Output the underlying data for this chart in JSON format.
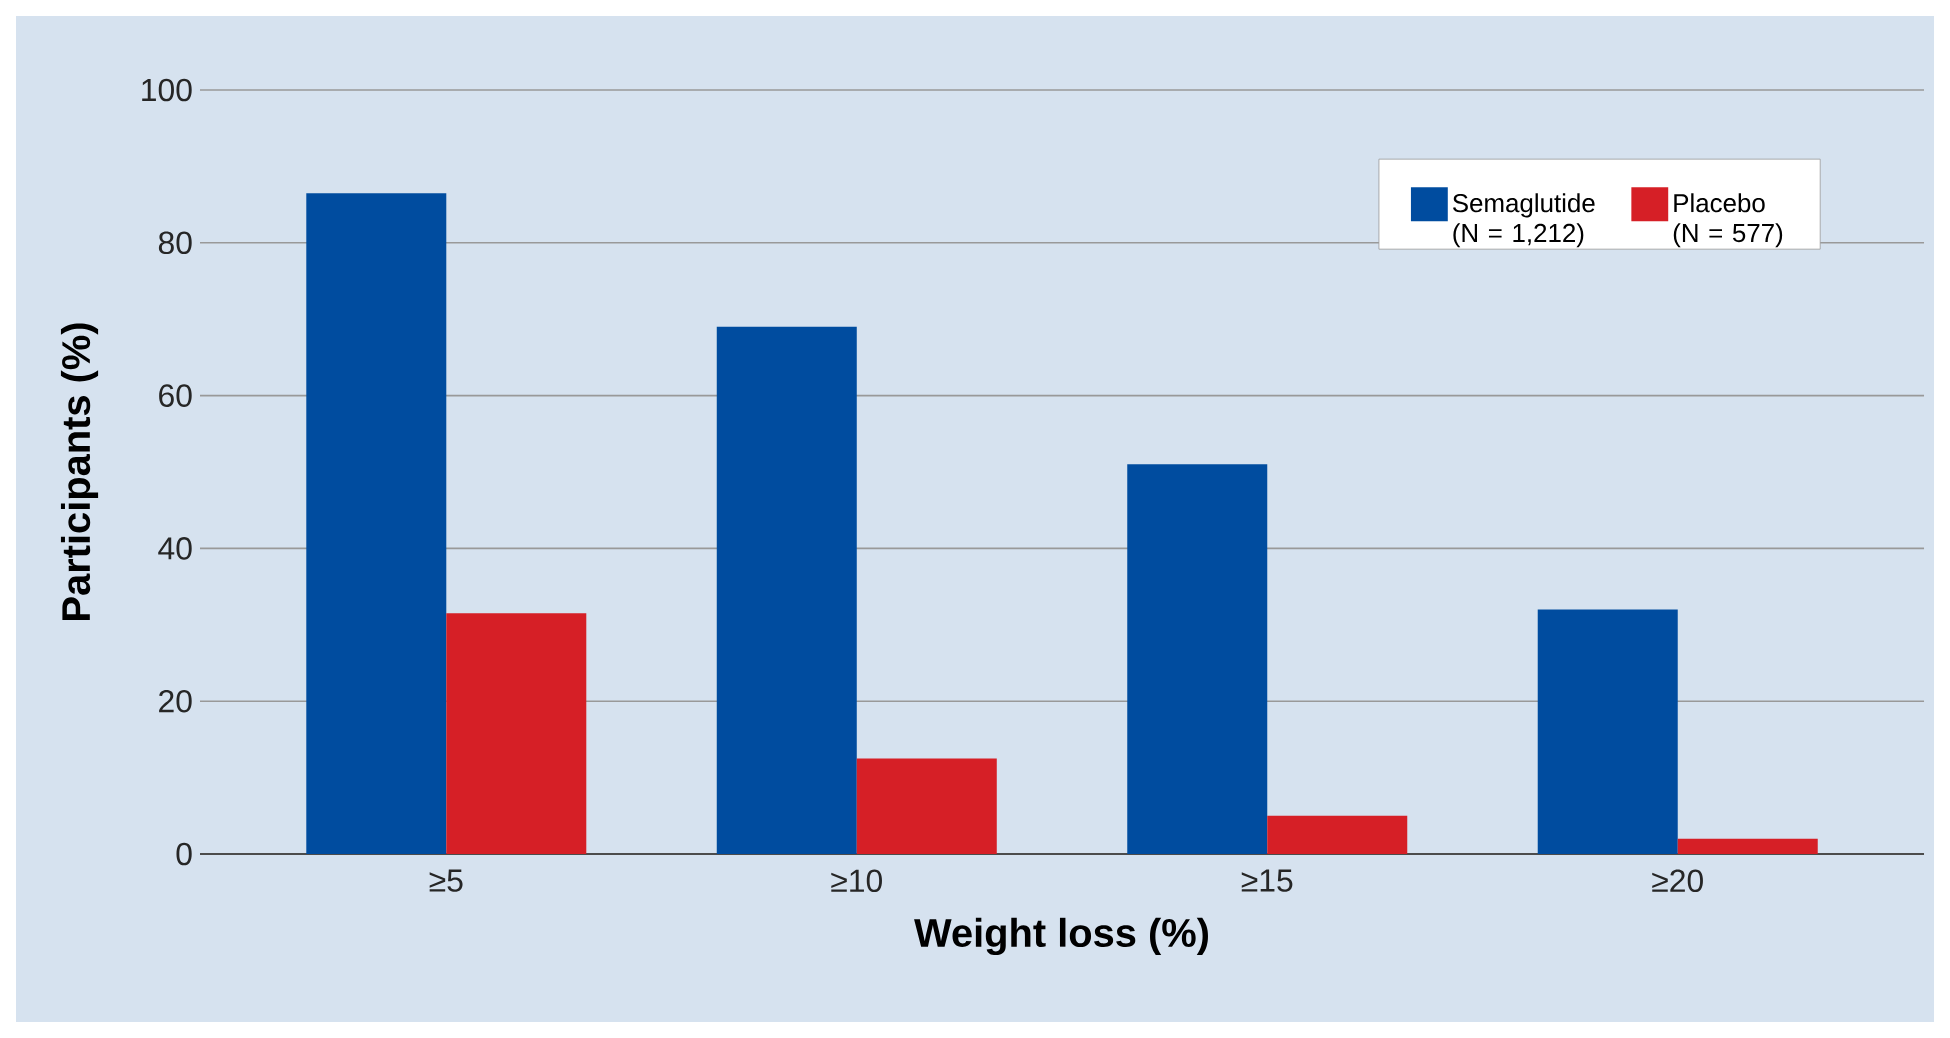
{
  "chart_data": {
    "type": "bar",
    "xlabel": "Weight loss (%)",
    "ylabel": "Participants (%)",
    "categories": [
      "≥5",
      "≥10",
      "≥15",
      "≥20"
    ],
    "series": [
      {
        "name": "Semaglutide (N = 1,212)",
        "color": "#004c9f",
        "values": [
          86.5,
          69,
          51,
          32
        ]
      },
      {
        "name": "Placebo (N = 577)",
        "color": "#d61f26",
        "values": [
          31.5,
          12.5,
          5,
          2
        ]
      }
    ],
    "ylim": [
      0,
      100
    ],
    "yticks": [
      0,
      20,
      40,
      60,
      80,
      100
    ],
    "grid": "y",
    "legend": "top right"
  }
}
